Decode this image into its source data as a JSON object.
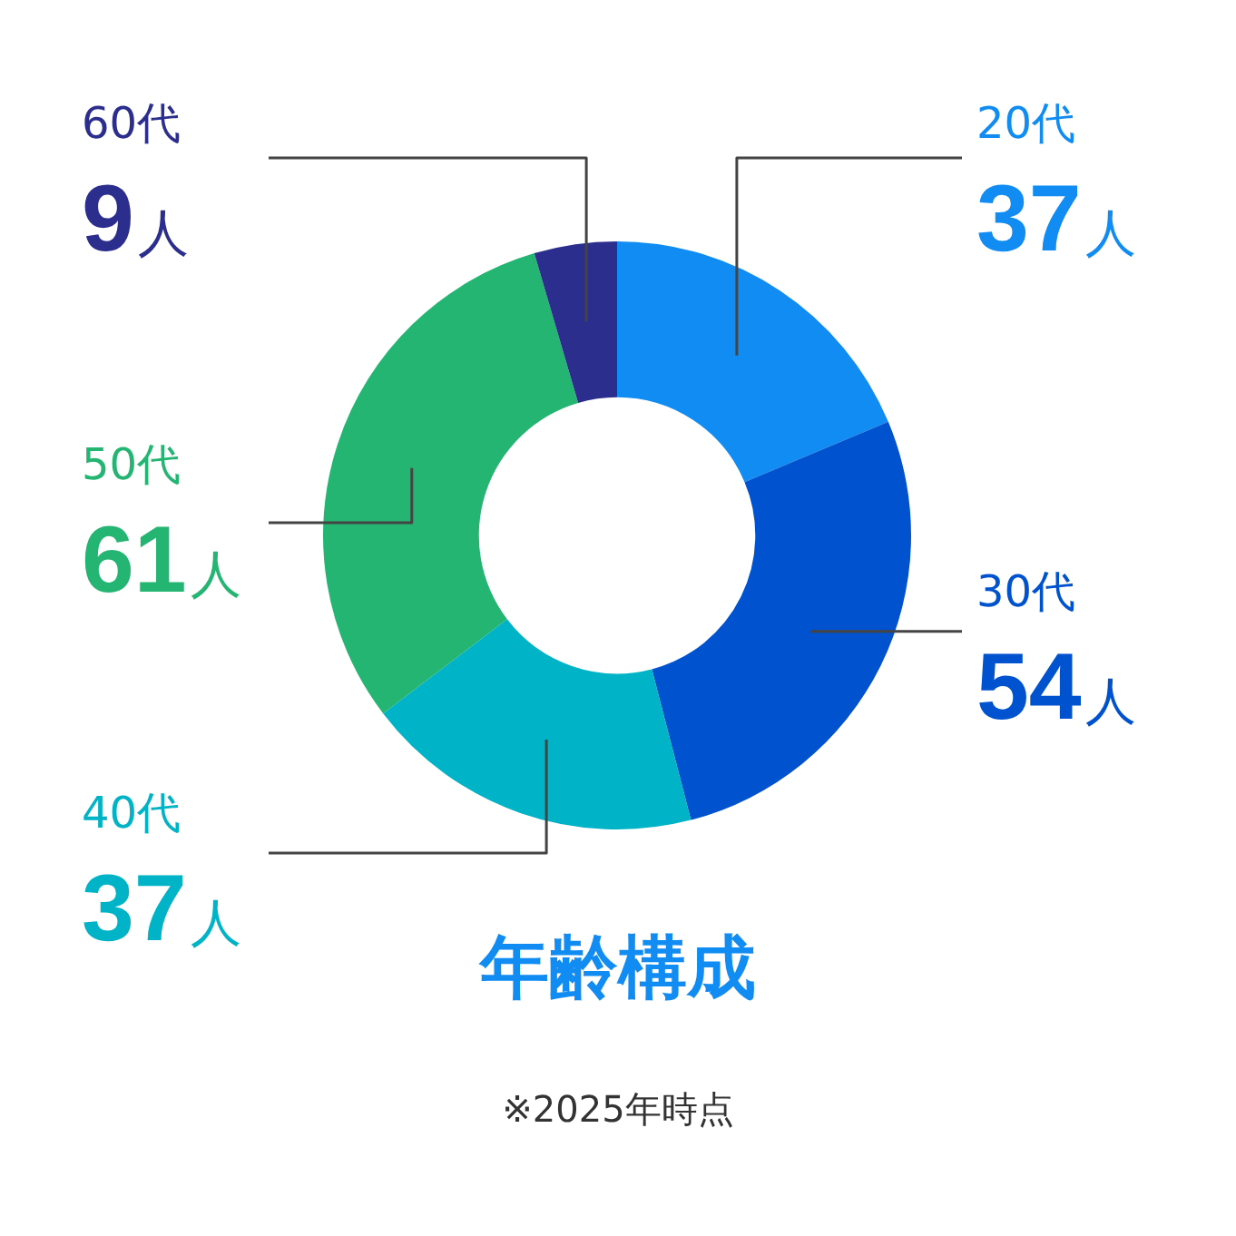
{
  "chart_data": {
    "type": "donut",
    "title": "年齢構成",
    "categories": [
      "20代",
      "30代",
      "40代",
      "50代",
      "60代"
    ],
    "values": [
      37,
      54,
      37,
      61,
      9
    ],
    "value_labels": [
      "37人",
      "54人",
      "37人",
      "61人",
      "9人"
    ],
    "colors": [
      "#118cf2",
      "#0052cf",
      "#00b3c6",
      "#25b573",
      "#2c2e8e"
    ],
    "legend": false,
    "annotations": [
      "※2025年時点"
    ]
  }
}
